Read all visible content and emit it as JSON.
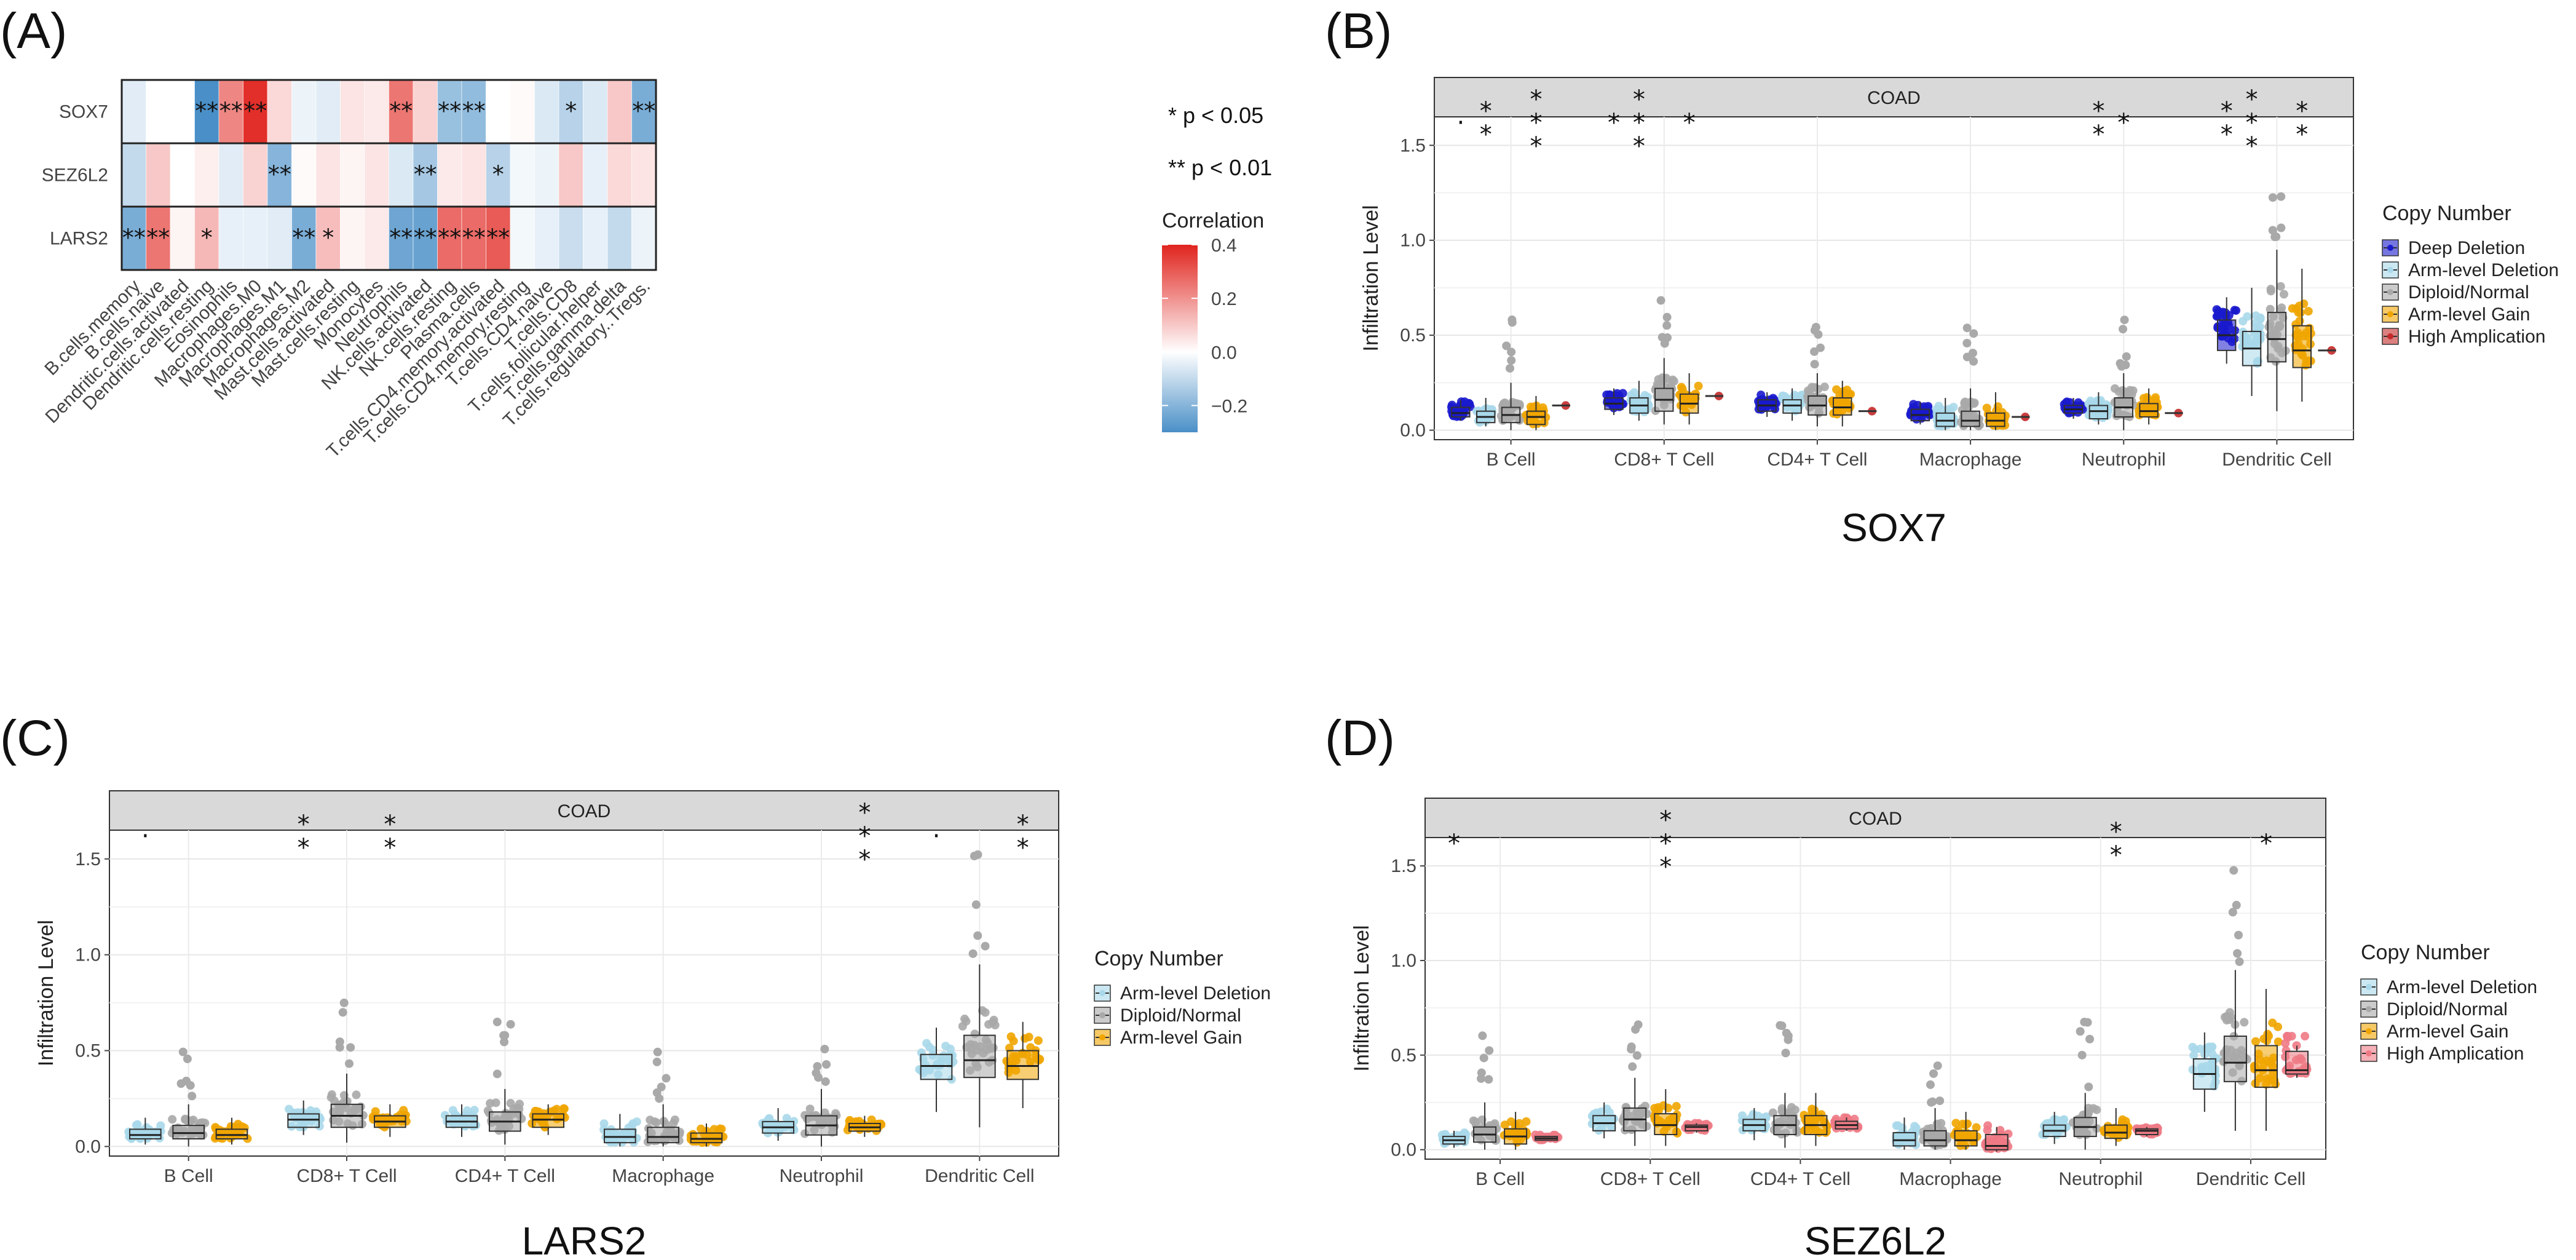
{
  "chart_data": [
    {
      "panel": "(A)",
      "type": "heatmap",
      "title": "",
      "rows": [
        "SOX7",
        "SEZ6L2",
        "LARS2"
      ],
      "columns": [
        "B.cells.memory",
        "B.cells.naive",
        "Dendritic.cells.activated",
        "Dendritic.cells.resting",
        "Eosinophils",
        "Macrophages.M0",
        "Macrophages.M1",
        "Macrophages.M2",
        "Mast.cells.activated",
        "Mast.cells.resting",
        "Monocytes",
        "Neutrophils",
        "NK.cells.activated",
        "NK.cells.resting",
        "Plasma.cells",
        "T.cells.CD4.memory.activated",
        "T.cells.CD4.memory.resting",
        "T.cells.CD4.naive",
        "T.cells.CD8",
        "T.cells.follicular.helper",
        "T.cells.gamma.delta",
        "T.cells.regulatory..Tregs."
      ],
      "values": [
        [
          -0.05,
          0.0,
          0.0,
          -0.32,
          0.22,
          0.38,
          0.07,
          -0.03,
          -0.05,
          0.05,
          0.04,
          0.25,
          0.08,
          -0.17,
          -0.18,
          0.0,
          0.01,
          -0.06,
          -0.12,
          -0.06,
          0.1,
          -0.22
        ],
        [
          -0.1,
          0.1,
          0.0,
          0.03,
          -0.05,
          0.08,
          -0.2,
          0.01,
          0.05,
          0.02,
          0.05,
          -0.06,
          -0.15,
          0.04,
          0.05,
          -0.12,
          -0.02,
          -0.03,
          0.1,
          -0.04,
          0.07,
          0.05
        ],
        [
          -0.22,
          0.25,
          0.02,
          0.13,
          -0.04,
          -0.04,
          -0.05,
          -0.22,
          0.12,
          0.02,
          0.04,
          -0.24,
          -0.25,
          0.27,
          0.27,
          0.3,
          -0.02,
          -0.04,
          -0.09,
          -0.04,
          -0.1,
          -0.03
        ]
      ],
      "significance": [
        [
          "",
          "",
          "",
          "**",
          "**",
          "**",
          "",
          "",
          "",
          "",
          "",
          "**",
          "",
          "**",
          "**",
          "",
          "",
          "",
          "*",
          "",
          "",
          "**"
        ],
        [
          "",
          "",
          "",
          "",
          "",
          "",
          "**",
          "",
          "",
          "",
          "",
          "",
          "**",
          "",
          "",
          "*",
          "",
          "",
          "",
          "",
          "",
          ""
        ],
        [
          "**",
          "**",
          "",
          "*",
          "",
          "",
          "",
          "**",
          "*",
          "",
          "",
          "**",
          "**",
          "**",
          "**",
          "**",
          "",
          "",
          "",
          "",
          "",
          ""
        ]
      ],
      "legend_notes": [
        "* p < 0.05",
        "** p < 0.01"
      ],
      "colorbar": {
        "title": "Correlation",
        "range": [
          -0.3,
          0.4
        ],
        "ticks": [
          0.4,
          0.2,
          0.0,
          -0.2
        ],
        "tick_labels": [
          "0.4",
          "0.2",
          "0.0",
          "−0.2"
        ],
        "low_color": "#4A8FC7",
        "mid_color": "#FFFFFF",
        "high_color": "#E0241E"
      }
    },
    {
      "panel": "(B)",
      "type": "box",
      "gene": "SOX7",
      "strip": "COAD",
      "ylabel": "Infiltration Level",
      "ylim": [
        -0.05,
        1.65
      ],
      "yticks": [
        0.0,
        0.5,
        1.0,
        1.5
      ],
      "ytick_labels": [
        "0.0",
        "0.5",
        "1.0",
        "1.5"
      ],
      "categories": [
        "B Cell",
        "CD8+ T Cell",
        "CD4+ T Cell",
        "Macrophage",
        "Neutrophil",
        "Dendritic Cell"
      ],
      "legend_title": "Copy Number",
      "series": [
        {
          "name": "Deep Deletion",
          "color": "#1A1ACD",
          "boxes": [
            [
              0.05,
              0.07,
              0.09,
              0.12,
              0.16
            ],
            [
              0.08,
              0.11,
              0.14,
              0.17,
              0.22
            ],
            [
              0.07,
              0.1,
              0.13,
              0.16,
              0.2
            ],
            [
              0.03,
              0.05,
              0.08,
              0.11,
              0.15
            ],
            [
              0.06,
              0.09,
              0.11,
              0.13,
              0.17
            ],
            [
              0.35,
              0.42,
              0.5,
              0.58,
              0.7
            ]
          ]
        },
        {
          "name": "Arm-level Deletion",
          "color": "#A8D8EA",
          "boxes": [
            [
              0.02,
              0.04,
              0.07,
              0.1,
              0.17
            ],
            [
              0.05,
              0.09,
              0.13,
              0.17,
              0.26
            ],
            [
              0.05,
              0.09,
              0.13,
              0.16,
              0.22
            ],
            [
              0.0,
              0.02,
              0.05,
              0.09,
              0.17
            ],
            [
              0.03,
              0.06,
              0.1,
              0.13,
              0.2
            ],
            [
              0.18,
              0.34,
              0.43,
              0.52,
              0.75
            ]
          ]
        },
        {
          "name": "Diploid/Normal",
          "color": "#A9A9A9",
          "boxes": [
            [
              0.0,
              0.04,
              0.08,
              0.12,
              0.25
            ],
            [
              0.03,
              0.1,
              0.16,
              0.22,
              0.38
            ],
            [
              0.02,
              0.08,
              0.13,
              0.18,
              0.3
            ],
            [
              0.0,
              0.02,
              0.05,
              0.1,
              0.22
            ],
            [
              0.0,
              0.07,
              0.12,
              0.17,
              0.3
            ],
            [
              0.1,
              0.36,
              0.48,
              0.62,
              0.95
            ]
          ]
        },
        {
          "name": "Arm-level Gain",
          "color": "#F0A500",
          "boxes": [
            [
              0.0,
              0.03,
              0.07,
              0.1,
              0.18
            ],
            [
              0.03,
              0.09,
              0.14,
              0.19,
              0.3
            ],
            [
              0.02,
              0.08,
              0.12,
              0.17,
              0.26
            ],
            [
              0.0,
              0.02,
              0.05,
              0.09,
              0.2
            ],
            [
              0.03,
              0.07,
              0.1,
              0.14,
              0.22
            ],
            [
              0.15,
              0.33,
              0.42,
              0.55,
              0.85
            ]
          ]
        },
        {
          "name": "High Amplication",
          "color": "#C42A2A",
          "boxes": [
            [
              0.13,
              0.13,
              0.13,
              0.13,
              0.13
            ],
            [
              0.18,
              0.18,
              0.18,
              0.18,
              0.18
            ],
            [
              0.1,
              0.1,
              0.1,
              0.1,
              0.1
            ],
            [
              0.07,
              0.07,
              0.07,
              0.07,
              0.07
            ],
            [
              0.09,
              0.09,
              0.09,
              0.09,
              0.09
            ],
            [
              0.42,
              0.42,
              0.42,
              0.42,
              0.42
            ]
          ]
        }
      ],
      "annotations": [
        {
          "category": 0,
          "series": 0,
          "text": "·"
        },
        {
          "category": 0,
          "series": 1,
          "text": "**"
        },
        {
          "category": 0,
          "series": 3,
          "text": "***"
        },
        {
          "category": 1,
          "series": 0,
          "text": "*"
        },
        {
          "category": 1,
          "series": 1,
          "text": "***"
        },
        {
          "category": 1,
          "series": 3,
          "text": "*"
        },
        {
          "category": 4,
          "series": 1,
          "text": "**"
        },
        {
          "category": 4,
          "series": 2,
          "text": "*"
        },
        {
          "category": 5,
          "series": 0,
          "text": "**"
        },
        {
          "category": 5,
          "series": 1,
          "text": "***"
        },
        {
          "category": 5,
          "series": 3,
          "text": "**"
        }
      ],
      "subtitle": "SOX7"
    },
    {
      "panel": "(C)",
      "type": "box",
      "gene": "LARS2",
      "strip": "COAD",
      "ylabel": "Infiltration Level",
      "ylim": [
        -0.05,
        1.65
      ],
      "yticks": [
        0.0,
        0.5,
        1.0,
        1.5
      ],
      "ytick_labels": [
        "0.0",
        "0.5",
        "1.0",
        "1.5"
      ],
      "categories": [
        "B Cell",
        "CD8+ T Cell",
        "CD4+ T Cell",
        "Macrophage",
        "Neutrophil",
        "Dendritic Cell"
      ],
      "legend_title": "Copy Number",
      "series": [
        {
          "name": "Arm-level Deletion",
          "color": "#A8D8EA",
          "boxes": [
            [
              0.01,
              0.04,
              0.06,
              0.09,
              0.15
            ],
            [
              0.06,
              0.1,
              0.14,
              0.17,
              0.24
            ],
            [
              0.05,
              0.1,
              0.13,
              0.16,
              0.22
            ],
            [
              0.0,
              0.02,
              0.05,
              0.09,
              0.17
            ],
            [
              0.03,
              0.07,
              0.1,
              0.13,
              0.2
            ],
            [
              0.18,
              0.35,
              0.42,
              0.48,
              0.62
            ]
          ]
        },
        {
          "name": "Diploid/Normal",
          "color": "#A9A9A9",
          "boxes": [
            [
              0.0,
              0.04,
              0.07,
              0.11,
              0.22
            ],
            [
              0.02,
              0.1,
              0.16,
              0.22,
              0.38
            ],
            [
              0.01,
              0.08,
              0.13,
              0.18,
              0.3
            ],
            [
              0.0,
              0.02,
              0.05,
              0.1,
              0.22
            ],
            [
              0.0,
              0.06,
              0.11,
              0.16,
              0.3
            ],
            [
              0.1,
              0.36,
              0.45,
              0.58,
              0.95
            ]
          ]
        },
        {
          "name": "Arm-level Gain",
          "color": "#F0A500",
          "boxes": [
            [
              0.01,
              0.04,
              0.06,
              0.09,
              0.15
            ],
            [
              0.05,
              0.1,
              0.13,
              0.16,
              0.22
            ],
            [
              0.06,
              0.1,
              0.14,
              0.17,
              0.22
            ],
            [
              0.0,
              0.02,
              0.04,
              0.07,
              0.12
            ],
            [
              0.05,
              0.08,
              0.1,
              0.12,
              0.16
            ],
            [
              0.2,
              0.35,
              0.42,
              0.5,
              0.65
            ]
          ]
        }
      ],
      "annotations": [
        {
          "category": 0,
          "series": 0,
          "text": "·"
        },
        {
          "category": 1,
          "series": 0,
          "text": "**"
        },
        {
          "category": 1,
          "series": 2,
          "text": "**"
        },
        {
          "category": 4,
          "series": 2,
          "text": "***"
        },
        {
          "category": 5,
          "series": 0,
          "text": "·"
        },
        {
          "category": 5,
          "series": 2,
          "text": "**"
        }
      ],
      "subtitle": "LARS2"
    },
    {
      "panel": "(D)",
      "type": "box",
      "gene": "SEZ6L2",
      "strip": "COAD",
      "ylabel": "Infiltration Level",
      "ylim": [
        -0.05,
        1.65
      ],
      "yticks": [
        0.0,
        0.5,
        1.0,
        1.5
      ],
      "ytick_labels": [
        "0.0",
        "0.5",
        "1.0",
        "1.5"
      ],
      "categories": [
        "B Cell",
        "CD8+ T Cell",
        "CD4+ T Cell",
        "Macrophage",
        "Neutrophil",
        "Dendritic Cell"
      ],
      "legend_title": "Copy Number",
      "series": [
        {
          "name": "Arm-level Deletion",
          "color": "#A8D8EA",
          "boxes": [
            [
              0.01,
              0.03,
              0.05,
              0.07,
              0.1
            ],
            [
              0.06,
              0.1,
              0.14,
              0.18,
              0.25
            ],
            [
              0.05,
              0.1,
              0.13,
              0.16,
              0.22
            ],
            [
              0.0,
              0.02,
              0.05,
              0.09,
              0.17
            ],
            [
              0.03,
              0.07,
              0.1,
              0.13,
              0.2
            ],
            [
              0.2,
              0.32,
              0.4,
              0.48,
              0.62
            ]
          ]
        },
        {
          "name": "Diploid/Normal",
          "color": "#A9A9A9",
          "boxes": [
            [
              0.0,
              0.04,
              0.08,
              0.12,
              0.25
            ],
            [
              0.02,
              0.1,
              0.16,
              0.22,
              0.38
            ],
            [
              0.01,
              0.08,
              0.13,
              0.18,
              0.3
            ],
            [
              0.0,
              0.02,
              0.05,
              0.1,
              0.22
            ],
            [
              0.0,
              0.07,
              0.12,
              0.17,
              0.3
            ],
            [
              0.1,
              0.36,
              0.46,
              0.6,
              0.95
            ]
          ]
        },
        {
          "name": "Arm-level Gain",
          "color": "#F0A500",
          "boxes": [
            [
              0.0,
              0.03,
              0.07,
              0.11,
              0.2
            ],
            [
              0.02,
              0.08,
              0.13,
              0.19,
              0.32
            ],
            [
              0.02,
              0.08,
              0.13,
              0.18,
              0.3
            ],
            [
              0.0,
              0.02,
              0.05,
              0.1,
              0.2
            ],
            [
              0.02,
              0.06,
              0.09,
              0.13,
              0.22
            ],
            [
              0.1,
              0.33,
              0.42,
              0.55,
              0.85
            ]
          ]
        },
        {
          "name": "High Amplication",
          "color": "#EE7A85",
          "boxes": [
            [
              0.05,
              0.05,
              0.06,
              0.07,
              0.07
            ],
            [
              0.09,
              0.1,
              0.12,
              0.13,
              0.14
            ],
            [
              0.1,
              0.11,
              0.13,
              0.15,
              0.17
            ],
            [
              -0.01,
              0.0,
              0.02,
              0.08,
              0.12
            ],
            [
              0.07,
              0.08,
              0.1,
              0.11,
              0.12
            ],
            [
              0.38,
              0.4,
              0.42,
              0.52,
              0.55
            ]
          ]
        }
      ],
      "annotations": [
        {
          "category": 0,
          "series": 0,
          "text": "*"
        },
        {
          "category": 1,
          "series": 2,
          "text": "***"
        },
        {
          "category": 4,
          "series": 2,
          "text": "**"
        },
        {
          "category": 5,
          "series": 2,
          "text": "*"
        }
      ],
      "subtitle": "SEZ6L2"
    }
  ]
}
